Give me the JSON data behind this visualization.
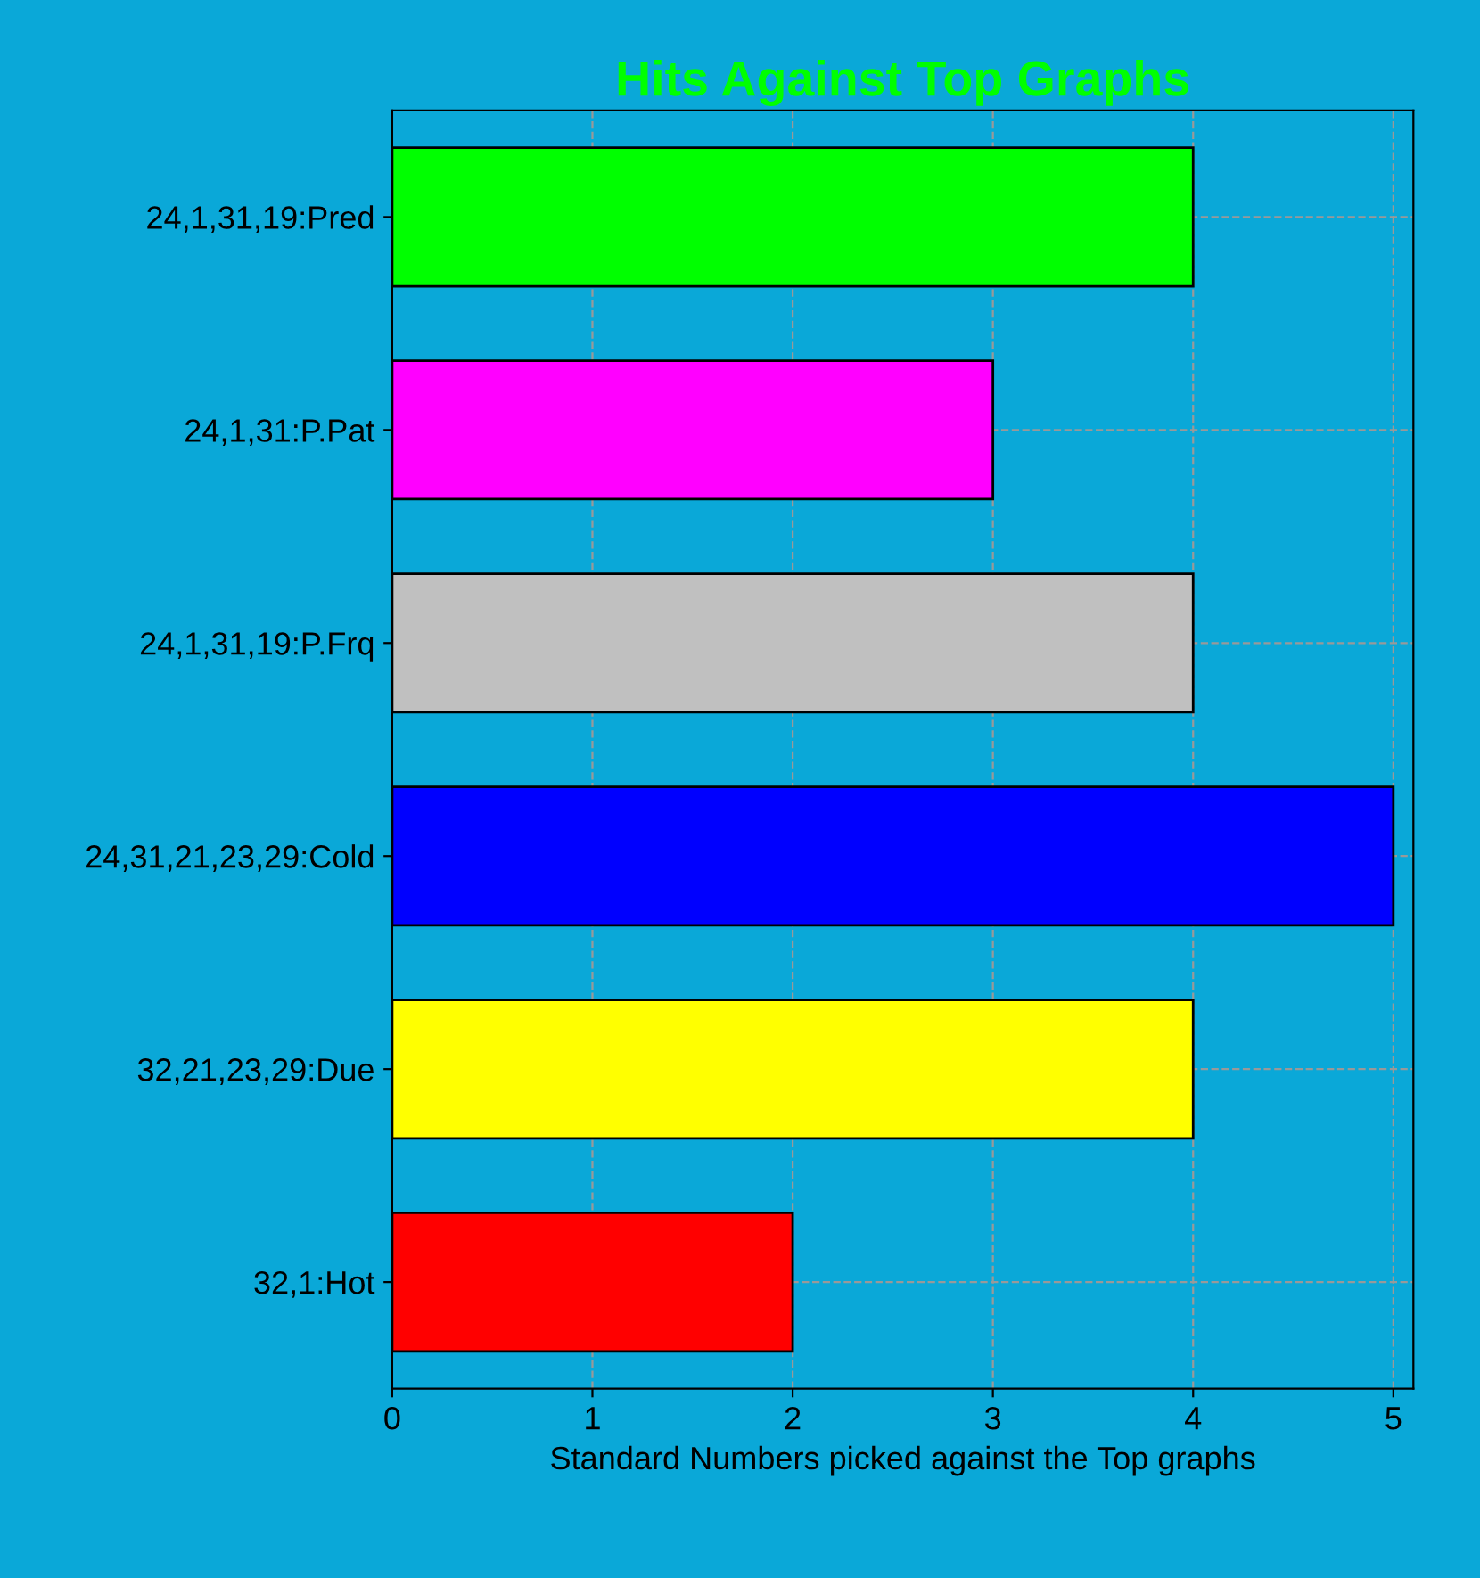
{
  "chart_data": {
    "type": "bar",
    "orientation": "horizontal",
    "title": "Hits Against Top Graphs",
    "xlabel": "Standard Numbers picked against the Top graphs",
    "categories": [
      "24,1,31,19:Pred",
      "24,1,31:P.Pat",
      "24,1,31,19:P.Frq",
      "24,31,21,23,29:Cold",
      "32,21,23,29:Due",
      "32,1:Hot"
    ],
    "values": [
      4,
      3,
      4,
      5,
      4,
      2
    ],
    "colors": [
      "#00ff00",
      "#ff00ff",
      "#c0c0c0",
      "#0000ff",
      "#ffff00",
      "#ff0000"
    ],
    "xlim": [
      0,
      5.1
    ],
    "xticks": [
      0,
      1,
      2,
      3,
      4,
      5
    ],
    "grid": true
  }
}
